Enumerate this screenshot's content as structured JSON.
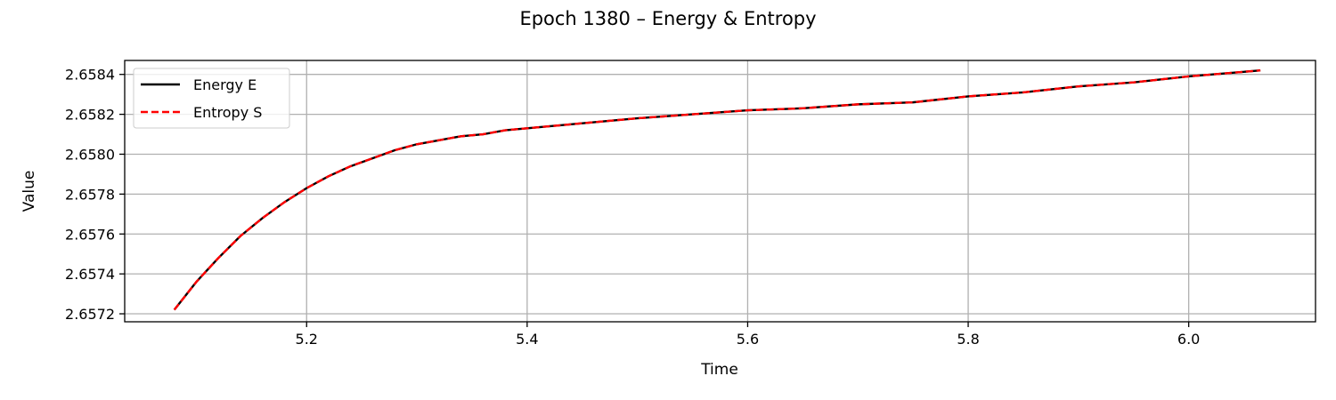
{
  "chart_data": {
    "type": "line",
    "title": "Epoch 1380 – Energy & Entropy",
    "xlabel": "Time",
    "ylabel": "Value",
    "xlim": [
      5.035,
      6.115
    ],
    "ylim": [
      2.65716,
      2.65847
    ],
    "xticks": [
      "5.2",
      "5.4",
      "5.6",
      "5.8",
      "6.0"
    ],
    "yticks": [
      "2.6572",
      "2.6574",
      "2.6576",
      "2.6578",
      "2.6580",
      "2.6582",
      "2.6584"
    ],
    "grid": true,
    "legend_position": "upper-left",
    "x": [
      5.08,
      5.1,
      5.12,
      5.14,
      5.16,
      5.18,
      5.2,
      5.22,
      5.24,
      5.26,
      5.28,
      5.3,
      5.32,
      5.34,
      5.36,
      5.38,
      5.4,
      5.42,
      5.44,
      5.46,
      5.48,
      5.5,
      5.55,
      5.6,
      5.65,
      5.7,
      5.75,
      5.8,
      5.85,
      5.9,
      5.95,
      6.0,
      6.065
    ],
    "series": [
      {
        "name": "Energy E",
        "color": "#000000",
        "style": "solid",
        "values": [
          2.65722,
          2.65736,
          2.65748,
          2.65759,
          2.65768,
          2.65776,
          2.65783,
          2.65789,
          2.65794,
          2.65798,
          2.65802,
          2.65805,
          2.65807,
          2.65809,
          2.6581,
          2.65812,
          2.65813,
          2.65814,
          2.65815,
          2.65816,
          2.65817,
          2.65818,
          2.6582,
          2.65822,
          2.65823,
          2.65825,
          2.65826,
          2.65829,
          2.65831,
          2.65834,
          2.65836,
          2.65839,
          2.65842
        ]
      },
      {
        "name": "Entropy S",
        "color": "#ff0000",
        "style": "dashed",
        "values": [
          2.65722,
          2.65736,
          2.65748,
          2.65759,
          2.65768,
          2.65776,
          2.65783,
          2.65789,
          2.65794,
          2.65798,
          2.65802,
          2.65805,
          2.65807,
          2.65809,
          2.6581,
          2.65812,
          2.65813,
          2.65814,
          2.65815,
          2.65816,
          2.65817,
          2.65818,
          2.6582,
          2.65822,
          2.65823,
          2.65825,
          2.65826,
          2.65829,
          2.65831,
          2.65834,
          2.65836,
          2.65839,
          2.65842
        ]
      }
    ]
  }
}
